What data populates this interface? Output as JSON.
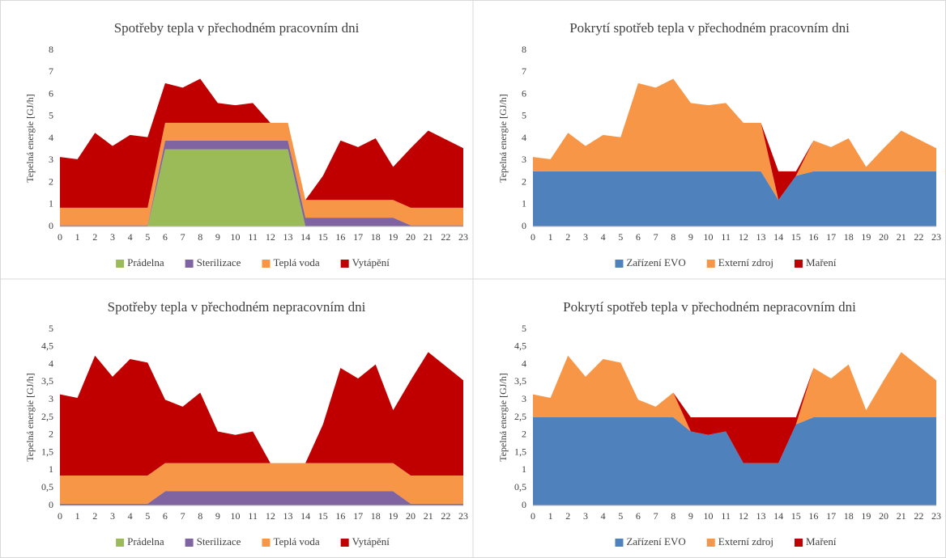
{
  "chart_data": [
    {
      "type": "stacked-area",
      "title": "Spotřeby tepla v přechodném pracovním dni",
      "y_label": "Tepelná energie [GJ/h]",
      "categories": [
        "0",
        "1",
        "2",
        "3",
        "4",
        "5",
        "6",
        "7",
        "8",
        "9",
        "10",
        "11",
        "12",
        "13",
        "14",
        "15",
        "16",
        "17",
        "18",
        "19",
        "20",
        "21",
        "22",
        "23"
      ],
      "ylim": [
        0,
        8
      ],
      "yticks": [
        0,
        1,
        2,
        3,
        4,
        5,
        6,
        7,
        8
      ],
      "legend": "bottom",
      "series": [
        {
          "name": "Prádelna",
          "color": "#9bbb59",
          "values": [
            0,
            0,
            0,
            0,
            0,
            0,
            3.5,
            3.5,
            3.5,
            3.5,
            3.5,
            3.5,
            3.5,
            3.5,
            0,
            0,
            0,
            0,
            0,
            0,
            0,
            0,
            0,
            0
          ]
        },
        {
          "name": "Sterilizace",
          "color": "#8064a2",
          "values": [
            0.05,
            0.05,
            0.05,
            0.05,
            0.05,
            0.05,
            0.4,
            0.4,
            0.4,
            0.4,
            0.4,
            0.4,
            0.4,
            0.4,
            0.4,
            0.4,
            0.4,
            0.4,
            0.4,
            0.4,
            0.05,
            0.05,
            0.05,
            0.05
          ]
        },
        {
          "name": "Teplá voda",
          "color": "#f79646",
          "values": [
            0.8,
            0.8,
            0.8,
            0.8,
            0.8,
            0.8,
            0.8,
            0.8,
            0.8,
            0.8,
            0.8,
            0.8,
            0.8,
            0.8,
            0.8,
            0.8,
            0.8,
            0.8,
            0.8,
            0.8,
            0.8,
            0.8,
            0.8,
            0.8
          ]
        },
        {
          "name": "Vytápění",
          "color": "#c00000",
          "values": [
            2.3,
            2.2,
            3.4,
            2.8,
            3.3,
            3.2,
            1.8,
            1.6,
            2.0,
            0.9,
            0.8,
            0.9,
            0,
            0,
            0,
            1.1,
            2.7,
            2.4,
            2.8,
            1.5,
            2.7,
            3.5,
            3.1,
            2.7
          ]
        }
      ]
    },
    {
      "type": "stacked-area",
      "title": "Pokrytí spotřeb tepla v přechodném pracovním dni",
      "y_label": "Tepelná energie [GJ/h]",
      "categories": [
        "0",
        "1",
        "2",
        "3",
        "4",
        "5",
        "6",
        "7",
        "8",
        "9",
        "10",
        "11",
        "12",
        "13",
        "14",
        "15",
        "16",
        "17",
        "18",
        "19",
        "20",
        "21",
        "22",
        "23"
      ],
      "ylim": [
        0,
        8
      ],
      "yticks": [
        0,
        1,
        2,
        3,
        4,
        5,
        6,
        7,
        8
      ],
      "legend": "bottom",
      "series": [
        {
          "name": "Zařízení EVO",
          "color": "#4f81bd",
          "values": [
            2.5,
            2.5,
            2.5,
            2.5,
            2.5,
            2.5,
            2.5,
            2.5,
            2.5,
            2.5,
            2.5,
            2.5,
            2.5,
            2.5,
            1.2,
            2.3,
            2.5,
            2.5,
            2.5,
            2.5,
            2.5,
            2.5,
            2.5,
            2.5
          ]
        },
        {
          "name": "Externí zdroj",
          "color": "#f79646",
          "values": [
            0.65,
            0.55,
            1.75,
            1.15,
            1.65,
            1.55,
            4.0,
            3.8,
            4.2,
            3.1,
            3.0,
            3.1,
            2.2,
            2.2,
            0,
            0,
            1.4,
            1.1,
            1.5,
            0.2,
            1.05,
            1.85,
            1.45,
            1.05
          ]
        },
        {
          "name": "Maření",
          "color": "#c00000",
          "values": [
            0,
            0,
            0,
            0,
            0,
            0,
            0,
            0,
            0,
            0,
            0,
            0,
            0,
            0,
            1.3,
            0.2,
            0,
            0,
            0,
            0,
            0,
            0,
            0,
            0
          ]
        }
      ]
    },
    {
      "type": "stacked-area",
      "title": "Spotřeby tepla v přechodném nepracovním dni",
      "y_label": "Tepelná energie [GJ/h]",
      "categories": [
        "0",
        "1",
        "2",
        "3",
        "4",
        "5",
        "6",
        "7",
        "8",
        "9",
        "10",
        "11",
        "12",
        "13",
        "14",
        "15",
        "16",
        "17",
        "18",
        "19",
        "20",
        "21",
        "22",
        "23"
      ],
      "ylim": [
        0,
        5
      ],
      "yticks": [
        0,
        {
          "value": 0.5,
          "label": "0,5"
        },
        1,
        {
          "value": 1.5,
          "label": "1,5"
        },
        2,
        {
          "value": 2.5,
          "label": "2,5"
        },
        3,
        {
          "value": 3.5,
          "label": "3,5"
        },
        4,
        {
          "value": 4.5,
          "label": "4,5"
        },
        5
      ],
      "legend": "bottom",
      "series": [
        {
          "name": "Prádelna",
          "color": "#9bbb59",
          "values": [
            0,
            0,
            0,
            0,
            0,
            0,
            0,
            0,
            0,
            0,
            0,
            0,
            0,
            0,
            0,
            0,
            0,
            0,
            0,
            0,
            0,
            0,
            0,
            0
          ]
        },
        {
          "name": "Sterilizace",
          "color": "#8064a2",
          "values": [
            0.05,
            0.05,
            0.05,
            0.05,
            0.05,
            0.05,
            0.4,
            0.4,
            0.4,
            0.4,
            0.4,
            0.4,
            0.4,
            0.4,
            0.4,
            0.4,
            0.4,
            0.4,
            0.4,
            0.4,
            0.05,
            0.05,
            0.05,
            0.05
          ]
        },
        {
          "name": "Teplá voda",
          "color": "#f79646",
          "values": [
            0.8,
            0.8,
            0.8,
            0.8,
            0.8,
            0.8,
            0.8,
            0.8,
            0.8,
            0.8,
            0.8,
            0.8,
            0.8,
            0.8,
            0.8,
            0.8,
            0.8,
            0.8,
            0.8,
            0.8,
            0.8,
            0.8,
            0.8,
            0.8
          ]
        },
        {
          "name": "Vytápění",
          "color": "#c00000",
          "values": [
            2.3,
            2.2,
            3.4,
            2.8,
            3.3,
            3.2,
            1.8,
            1.6,
            2.0,
            0.9,
            0.8,
            0.9,
            0,
            0,
            0,
            1.1,
            2.7,
            2.4,
            2.8,
            1.5,
            2.7,
            3.5,
            3.1,
            2.7
          ]
        }
      ]
    },
    {
      "type": "stacked-area",
      "title": "Pokrytí spotřeb tepla v přechodném nepracovním dni",
      "y_label": "Tepelná energie [GJ/h]",
      "categories": [
        "0",
        "1",
        "2",
        "3",
        "4",
        "5",
        "6",
        "7",
        "8",
        "9",
        "10",
        "11",
        "12",
        "13",
        "14",
        "15",
        "16",
        "17",
        "18",
        "19",
        "20",
        "21",
        "22",
        "23"
      ],
      "ylim": [
        0,
        5
      ],
      "yticks": [
        0,
        {
          "value": 0.5,
          "label": "0,5"
        },
        1,
        {
          "value": 1.5,
          "label": "1,5"
        },
        2,
        {
          "value": 2.5,
          "label": "2,5"
        },
        3,
        {
          "value": 3.5,
          "label": "3,5"
        },
        4,
        {
          "value": 4.5,
          "label": "4,5"
        },
        5
      ],
      "legend": "bottom",
      "series": [
        {
          "name": "Zařízení EVO",
          "color": "#4f81bd",
          "values": [
            2.5,
            2.5,
            2.5,
            2.5,
            2.5,
            2.5,
            2.5,
            2.5,
            2.5,
            2.1,
            2.0,
            2.1,
            1.2,
            1.2,
            1.2,
            2.3,
            2.5,
            2.5,
            2.5,
            2.5,
            2.5,
            2.5,
            2.5,
            2.5
          ]
        },
        {
          "name": "Externí zdroj",
          "color": "#f79646",
          "values": [
            0.65,
            0.55,
            1.75,
            1.15,
            1.65,
            1.55,
            0.5,
            0.3,
            0.7,
            0,
            0,
            0,
            0,
            0,
            0,
            0,
            1.4,
            1.1,
            1.5,
            0.2,
            1.05,
            1.85,
            1.45,
            1.05
          ]
        },
        {
          "name": "Maření",
          "color": "#c00000",
          "values": [
            0,
            0,
            0,
            0,
            0,
            0,
            0,
            0,
            0,
            0.4,
            0.5,
            0.4,
            1.3,
            1.3,
            1.3,
            0.2,
            0,
            0,
            0,
            0,
            0,
            0,
            0,
            0
          ]
        }
      ]
    }
  ]
}
